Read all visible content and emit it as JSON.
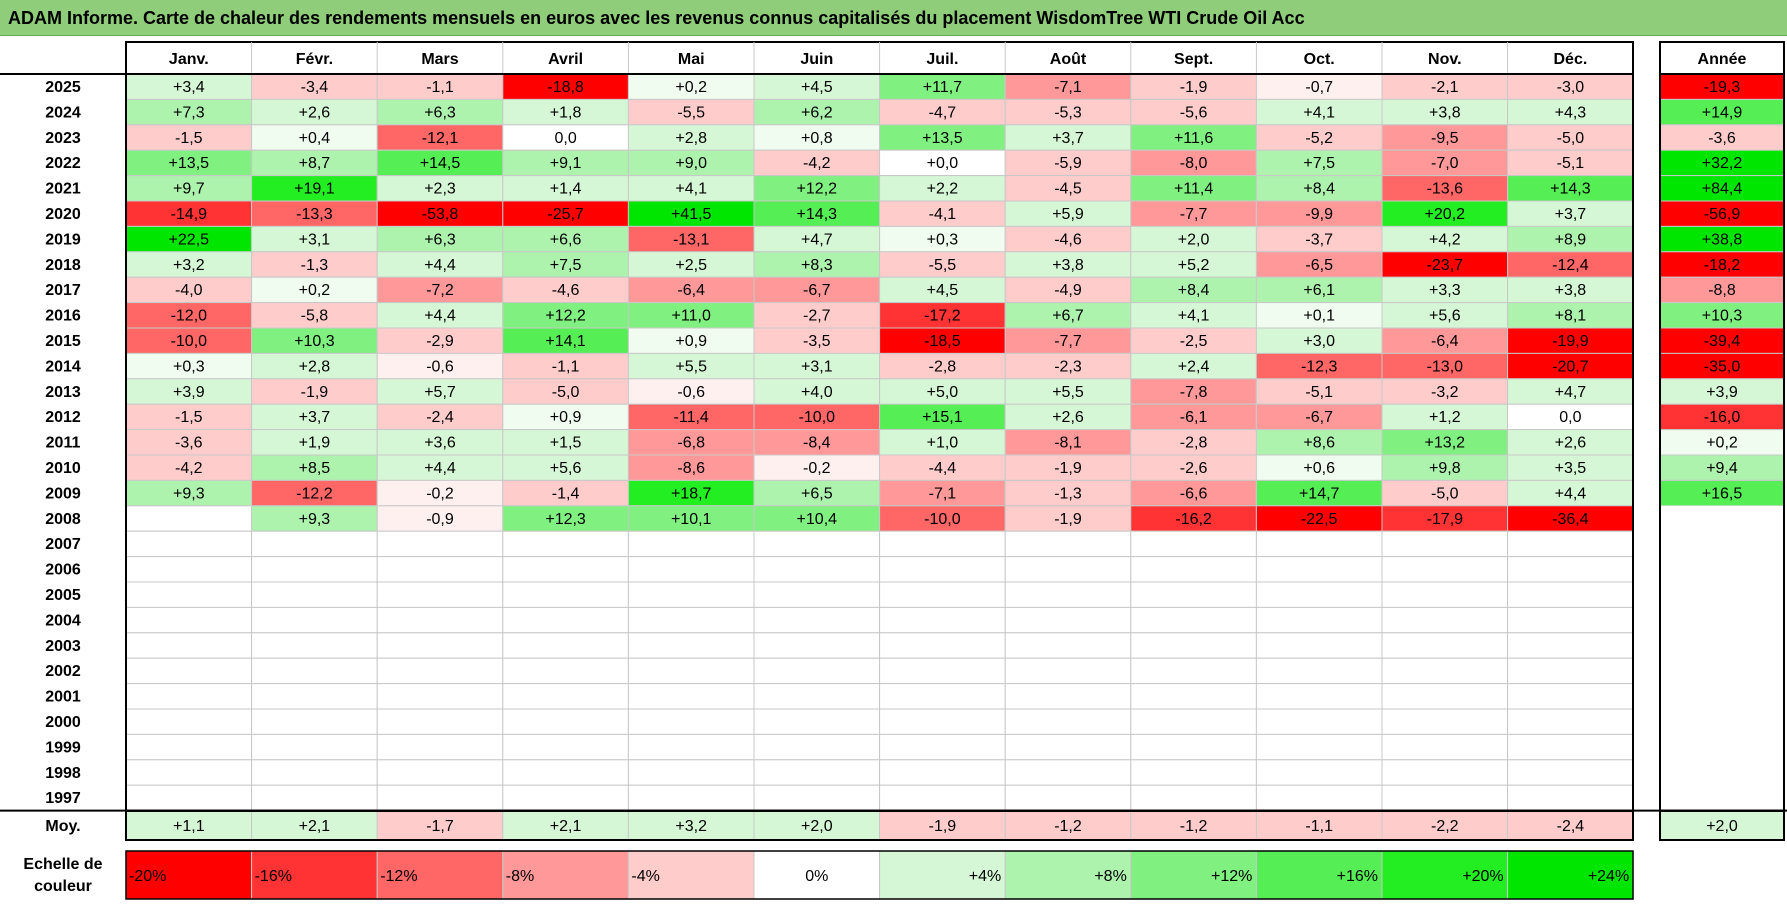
{
  "title": "ADAM Informe. Carte de chaleur des rendements mensuels en euros avec les revenus connus capitalisés du placement WisdomTree WTI Crude Oil Acc",
  "chart_data": {
    "type": "heatmap",
    "months": [
      "Janv.",
      "Févr.",
      "Mars",
      "Avril",
      "Mai",
      "Juin",
      "Juil.",
      "Août",
      "Sept.",
      "Oct.",
      "Nov.",
      "Déc."
    ],
    "annual_label": "Année",
    "average_label": "Moy.",
    "rows": [
      {
        "year": "2025",
        "values": [
          "+3,4",
          "-3,4",
          "-1,1",
          "-18,8",
          "+0,2",
          "+4,5",
          "+11,7",
          "-7,1",
          "-1,9",
          "-0,7",
          "-2,1",
          "-3,0"
        ],
        "annual": "-19,3"
      },
      {
        "year": "2024",
        "values": [
          "+7,3",
          "+2,6",
          "+6,3",
          "+1,8",
          "-5,5",
          "+6,2",
          "-4,7",
          "-5,3",
          "-5,6",
          "+4,1",
          "+3,8",
          "+4,3"
        ],
        "annual": "+14,9"
      },
      {
        "year": "2023",
        "values": [
          "-1,5",
          "+0,4",
          "-12,1",
          "0,0",
          "+2,8",
          "+0,8",
          "+13,5",
          "+3,7",
          "+11,6",
          "-5,2",
          "-9,5",
          "-5,0"
        ],
        "annual": "-3,6"
      },
      {
        "year": "2022",
        "values": [
          "+13,5",
          "+8,7",
          "+14,5",
          "+9,1",
          "+9,0",
          "-4,2",
          "+0,0",
          "-5,9",
          "-8,0",
          "+7,5",
          "-7,0",
          "-5,1"
        ],
        "annual": "+32,2"
      },
      {
        "year": "2021",
        "values": [
          "+9,7",
          "+19,1",
          "+2,3",
          "+1,4",
          "+4,1",
          "+12,2",
          "+2,2",
          "-4,5",
          "+11,4",
          "+8,4",
          "-13,6",
          "+14,3"
        ],
        "annual": "+84,4"
      },
      {
        "year": "2020",
        "values": [
          "-14,9",
          "-13,3",
          "-53,8",
          "-25,7",
          "+41,5",
          "+14,3",
          "-4,1",
          "+5,9",
          "-7,7",
          "-9,9",
          "+20,2",
          "+3,7"
        ],
        "annual": "-56,9"
      },
      {
        "year": "2019",
        "values": [
          "+22,5",
          "+3,1",
          "+6,3",
          "+6,6",
          "-13,1",
          "+4,7",
          "+0,3",
          "-4,6",
          "+2,0",
          "-3,7",
          "+4,2",
          "+8,9"
        ],
        "annual": "+38,8"
      },
      {
        "year": "2018",
        "values": [
          "+3,2",
          "-1,3",
          "+4,4",
          "+7,5",
          "+2,5",
          "+8,3",
          "-5,5",
          "+3,8",
          "+5,2",
          "-6,5",
          "-23,7",
          "-12,4"
        ],
        "annual": "-18,2"
      },
      {
        "year": "2017",
        "values": [
          "-4,0",
          "+0,2",
          "-7,2",
          "-4,6",
          "-6,4",
          "-6,7",
          "+4,5",
          "-4,9",
          "+8,4",
          "+6,1",
          "+3,3",
          "+3,8"
        ],
        "annual": "-8,8"
      },
      {
        "year": "2016",
        "values": [
          "-12,0",
          "-5,8",
          "+4,4",
          "+12,2",
          "+11,0",
          "-2,7",
          "-17,2",
          "+6,7",
          "+4,1",
          "+0,1",
          "+5,6",
          "+8,1"
        ],
        "annual": "+10,3"
      },
      {
        "year": "2015",
        "values": [
          "-10,0",
          "+10,3",
          "-2,9",
          "+14,1",
          "+0,9",
          "-3,5",
          "-18,5",
          "-7,7",
          "-2,5",
          "+3,0",
          "-6,4",
          "-19,9"
        ],
        "annual": "-39,4"
      },
      {
        "year": "2014",
        "values": [
          "+0,3",
          "+2,8",
          "-0,6",
          "-1,1",
          "+5,5",
          "+3,1",
          "-2,8",
          "-2,3",
          "+2,4",
          "-12,3",
          "-13,0",
          "-20,7"
        ],
        "annual": "-35,0"
      },
      {
        "year": "2013",
        "values": [
          "+3,9",
          "-1,9",
          "+5,7",
          "-5,0",
          "-0,6",
          "+4,0",
          "+5,0",
          "+5,5",
          "-7,8",
          "-5,1",
          "-3,2",
          "+4,7"
        ],
        "annual": "+3,9"
      },
      {
        "year": "2012",
        "values": [
          "-1,5",
          "+3,7",
          "-2,4",
          "+0,9",
          "-11,4",
          "-10,0",
          "+15,1",
          "+2,6",
          "-6,1",
          "-6,7",
          "+1,2",
          "0,0"
        ],
        "annual": "-16,0"
      },
      {
        "year": "2011",
        "values": [
          "-3,6",
          "+1,9",
          "+3,6",
          "+1,5",
          "-6,8",
          "-8,4",
          "+1,0",
          "-8,1",
          "-2,8",
          "+8,6",
          "+13,2",
          "+2,6"
        ],
        "annual": "+0,2"
      },
      {
        "year": "2010",
        "values": [
          "-4,2",
          "+8,5",
          "+4,4",
          "+5,6",
          "-8,6",
          "-0,2",
          "-4,4",
          "-1,9",
          "-2,6",
          "+0,6",
          "+9,8",
          "+3,5"
        ],
        "annual": "+9,4"
      },
      {
        "year": "2009",
        "values": [
          "+9,3",
          "-12,2",
          "-0,2",
          "-1,4",
          "+18,7",
          "+6,5",
          "-7,1",
          "-1,3",
          "-6,6",
          "+14,7",
          "-5,0",
          "+4,4"
        ],
        "annual": "+16,5"
      },
      {
        "year": "2008",
        "values": [
          "",
          "+9,3",
          "-0,9",
          "+12,3",
          "+10,1",
          "+10,4",
          "-10,0",
          "-1,9",
          "-16,2",
          "-22,5",
          "-17,9",
          "-36,4"
        ],
        "annual": ""
      },
      {
        "year": "2007",
        "values": [
          "",
          "",
          "",
          "",
          "",
          "",
          "",
          "",
          "",
          "",
          "",
          ""
        ],
        "annual": ""
      },
      {
        "year": "2006",
        "values": [
          "",
          "",
          "",
          "",
          "",
          "",
          "",
          "",
          "",
          "",
          "",
          ""
        ],
        "annual": ""
      },
      {
        "year": "2005",
        "values": [
          "",
          "",
          "",
          "",
          "",
          "",
          "",
          "",
          "",
          "",
          "",
          ""
        ],
        "annual": ""
      },
      {
        "year": "2004",
        "values": [
          "",
          "",
          "",
          "",
          "",
          "",
          "",
          "",
          "",
          "",
          "",
          ""
        ],
        "annual": ""
      },
      {
        "year": "2003",
        "values": [
          "",
          "",
          "",
          "",
          "",
          "",
          "",
          "",
          "",
          "",
          "",
          ""
        ],
        "annual": ""
      },
      {
        "year": "2002",
        "values": [
          "",
          "",
          "",
          "",
          "",
          "",
          "",
          "",
          "",
          "",
          "",
          ""
        ],
        "annual": ""
      },
      {
        "year": "2001",
        "values": [
          "",
          "",
          "",
          "",
          "",
          "",
          "",
          "",
          "",
          "",
          "",
          ""
        ],
        "annual": ""
      },
      {
        "year": "2000",
        "values": [
          "",
          "",
          "",
          "",
          "",
          "",
          "",
          "",
          "",
          "",
          "",
          ""
        ],
        "annual": ""
      },
      {
        "year": "1999",
        "values": [
          "",
          "",
          "",
          "",
          "",
          "",
          "",
          "",
          "",
          "",
          "",
          ""
        ],
        "annual": ""
      },
      {
        "year": "1998",
        "values": [
          "",
          "",
          "",
          "",
          "",
          "",
          "",
          "",
          "",
          "",
          "",
          ""
        ],
        "annual": ""
      },
      {
        "year": "1997",
        "values": [
          "",
          "",
          "",
          "",
          "",
          "",
          "",
          "",
          "",
          "",
          "",
          ""
        ],
        "annual": ""
      }
    ],
    "average": {
      "values": [
        "+1,1",
        "+2,1",
        "-1,7",
        "+2,1",
        "+3,2",
        "+2,0",
        "-1,9",
        "-1,2",
        "-1,2",
        "-1,1",
        "-2,2",
        "-2,4"
      ],
      "annual": "+2,0"
    },
    "color_scale": {
      "label": "Echelle de couleur",
      "steps": [
        {
          "label": "-20%",
          "value": -20,
          "color": "#ff0000"
        },
        {
          "label": "-16%",
          "value": -16,
          "color": "#ff3333"
        },
        {
          "label": "-12%",
          "value": -12,
          "color": "#ff6666"
        },
        {
          "label": "-8%",
          "value": -8,
          "color": "#ff9999"
        },
        {
          "label": "-4%",
          "value": -4,
          "color": "#ffcccc"
        },
        {
          "label": "0%",
          "value": 0,
          "color": "#ffffff"
        },
        {
          "label": "+4%",
          "value": 4,
          "color": "#d6f7d6"
        },
        {
          "label": "+8%",
          "value": 8,
          "color": "#adf2ad"
        },
        {
          "label": "+12%",
          "value": 12,
          "color": "#80f080"
        },
        {
          "label": "+16%",
          "value": 16,
          "color": "#55ee55"
        },
        {
          "label": "+20%",
          "value": 20,
          "color": "#22ee22"
        },
        {
          "label": "+24%",
          "value": 24,
          "color": "#00e600"
        }
      ]
    }
  }
}
